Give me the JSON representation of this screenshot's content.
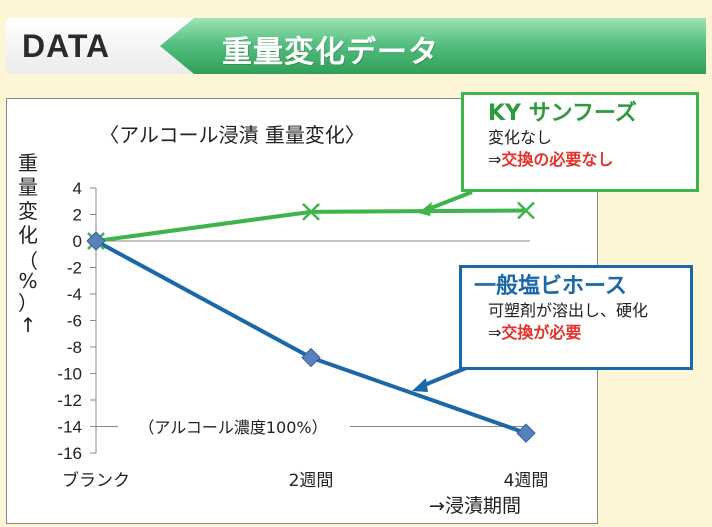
{
  "header": {
    "label": "DATA",
    "title": "重量変化データ"
  },
  "colors": {
    "ky_series": "#3db54a",
    "general_series": "#1b67a8",
    "general_marker": "#5a7fbd",
    "emphasis": "#e3322c"
  },
  "chart_data": {
    "type": "line",
    "title": "〈アルコール浸漬 重量変化〉",
    "ylabel": "重量変化（%）↑",
    "xlabel": "→浸漬期間",
    "categories": [
      "ブランク",
      "2週間",
      "4週間"
    ],
    "ylim": [
      -16,
      4
    ],
    "yticks": [
      4,
      2,
      0,
      -2,
      -4,
      -6,
      -8,
      -10,
      -12,
      -14,
      -16
    ],
    "grid": false,
    "annotation": "（アルコール濃度100%）",
    "series": [
      {
        "name": "KY サンフーズ",
        "values": [
          0,
          2.2,
          2.3
        ],
        "marker": "x",
        "color": "#3db54a"
      },
      {
        "name": "一般塩ビホース",
        "values": [
          0,
          -8.8,
          -14.5
        ],
        "marker": "diamond",
        "color": "#1b67a8"
      }
    ]
  },
  "callouts": {
    "ky": {
      "title": "KY サンフーズ",
      "line1": "変化なし",
      "line2_prefix": "⇒",
      "line2_emphasis": "交換の必要なし"
    },
    "general": {
      "title": "一般塩ビホース",
      "line1": "可塑剤が溶出し、硬化",
      "line2_prefix": "⇒",
      "line2_emphasis": "交換が必要"
    }
  }
}
